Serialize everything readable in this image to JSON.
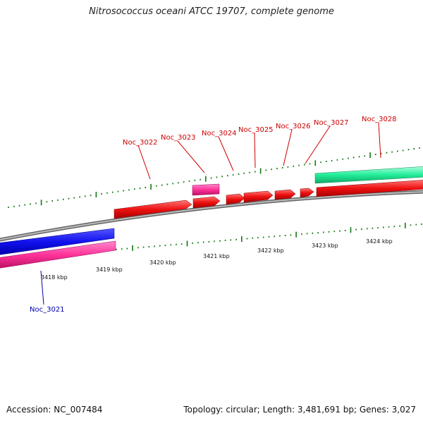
{
  "title": "Nitrosococcus oceani ATCC 19707, complete genome",
  "footer": {
    "accession": "Accession: NC_007484",
    "summary": "Topology: circular; Length: 3,481,691 bp; Genes: 3,027"
  },
  "colors": {
    "cds": "#ee1111",
    "rna": "#ff3399",
    "gene_blue": "#1111ee",
    "gene_green": "#22ee99",
    "backbone": "#888888",
    "tick": "#117711",
    "label_red": "#cc0000",
    "label_blue": "#0000aa"
  },
  "scale": {
    "unit": "kbp",
    "labels": [
      "3418 kbp",
      "3419 kbp",
      "3420 kbp",
      "3421 kbp",
      "3422 kbp",
      "3423 kbp",
      "3424 kbp"
    ]
  },
  "gene_labels": [
    {
      "text": "Noc_3021",
      "strand": "minus"
    },
    {
      "text": "Noc_3022",
      "strand": "plus"
    },
    {
      "text": "Noc_3023",
      "strand": "plus"
    },
    {
      "text": "Noc_3024",
      "strand": "plus"
    },
    {
      "text": "Noc_3025",
      "strand": "plus"
    },
    {
      "text": "Noc_3026",
      "strand": "plus"
    },
    {
      "text": "Noc_3027",
      "strand": "plus"
    },
    {
      "text": "Noc_3028",
      "strand": "plus"
    }
  ]
}
